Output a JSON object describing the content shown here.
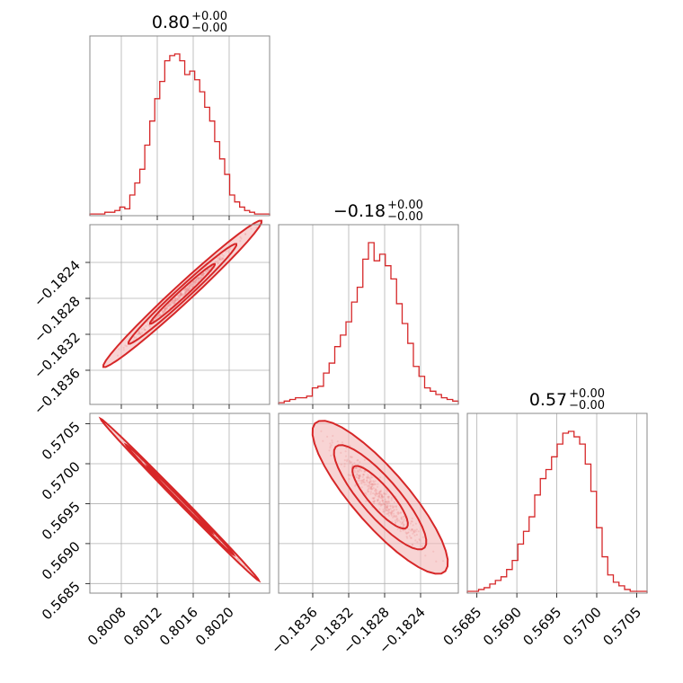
{
  "colors": {
    "accent": "#d62728",
    "fill": "#f4b8b8",
    "grid": "#b0b0b0",
    "frame": "#888888"
  },
  "chart_data": {
    "type": "corner",
    "parameters": [
      {
        "title": {
          "value": "0.80",
          "upper": "+0.00",
          "lower": "−0.00"
        },
        "range": [
          0.80045,
          0.80245
        ],
        "ticks": [
          0.8008,
          0.8012,
          0.8016,
          0.802
        ],
        "tick_labels": [
          "0.8008",
          "0.8012",
          "0.8016",
          "0.8020"
        ],
        "hist": [
          1,
          1,
          1,
          2,
          2,
          3,
          5,
          4,
          12,
          19,
          27,
          41,
          55,
          68,
          78,
          90,
          93,
          94,
          90,
          82,
          84,
          79,
          72,
          63,
          55,
          43,
          33,
          24,
          12,
          8,
          5,
          3,
          2,
          1,
          1,
          1
        ]
      },
      {
        "title": {
          "value": "−0.18",
          "upper": "+0.00",
          "lower": "−0.00"
        },
        "range": [
          -0.18398,
          -0.18198
        ],
        "ticks": [
          -0.1836,
          -0.1832,
          -0.1828,
          -0.1824
        ],
        "tick_labels": [
          "−0.1836",
          "−0.1832",
          "−0.1828",
          "−0.1824"
        ],
        "hist": [
          1,
          2,
          3,
          4,
          4,
          5,
          10,
          11,
          19,
          25,
          35,
          42,
          50,
          62,
          71,
          88,
          98,
          87,
          91,
          84,
          76,
          61,
          49,
          37,
          23,
          17,
          10,
          8,
          6,
          4,
          3,
          2
        ]
      },
      {
        "title": {
          "value": "0.57",
          "upper": "+0.00",
          "lower": "−0.00"
        },
        "range": [
          0.56838,
          0.57063
        ],
        "ticks": [
          0.5685,
          0.569,
          0.5695,
          0.57,
          0.5705
        ],
        "tick_labels": [
          "0.5685",
          "0.5690",
          "0.5695",
          "0.5700",
          "0.5705"
        ],
        "hist": [
          1,
          1,
          2,
          3,
          5,
          7,
          9,
          13,
          18,
          27,
          34,
          42,
          54,
          63,
          68,
          75,
          82,
          88,
          89,
          86,
          82,
          71,
          56,
          36,
          20,
          10,
          6,
          4,
          2,
          1,
          1,
          1
        ]
      }
    ],
    "scatter_pairs": [
      {
        "x_param": 0,
        "y_param": 1,
        "relation": "positive"
      },
      {
        "x_param": 0,
        "y_param": 2,
        "relation": "negative"
      },
      {
        "x_param": 1,
        "y_param": 2,
        "relation": "negative"
      }
    ],
    "grid": true
  }
}
